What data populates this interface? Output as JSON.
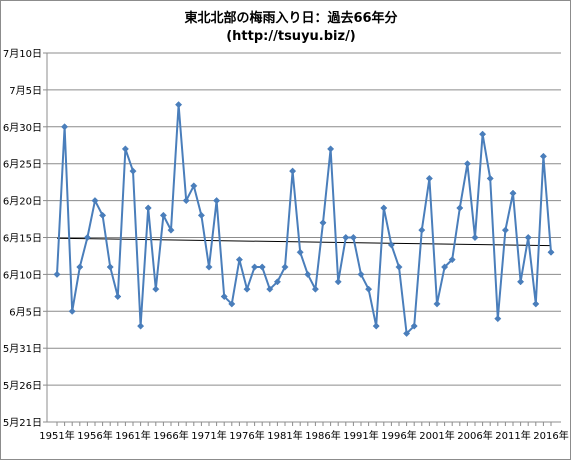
{
  "chart_data": {
    "type": "line",
    "title": "東北北部の梅雨入り日：過去66年分",
    "subtitle": "(http://tsuyu.biz/)",
    "xlabel": "",
    "ylabel": "",
    "x_tick_labels": [
      "1951年",
      "1956年",
      "1961年",
      "1966年",
      "1971年",
      "1976年",
      "1981年",
      "1986年",
      "1991年",
      "1996年",
      "2001年",
      "2006年",
      "2011年",
      "2016年"
    ],
    "y_tick_labels": [
      "5月21日",
      "5月26日",
      "5月31日",
      "6月5日",
      "6月10日",
      "6月15日",
      "6月20日",
      "6月25日",
      "6月30日",
      "7月5日",
      "7月10日"
    ],
    "y_tick_day_values": [
      -10,
      -5,
      0,
      5,
      10,
      15,
      20,
      25,
      30,
      35,
      40
    ],
    "y_unit_note": "days after May 31",
    "ylim": [
      -10,
      40
    ],
    "x": [
      1951,
      1952,
      1953,
      1954,
      1955,
      1956,
      1957,
      1958,
      1959,
      1960,
      1961,
      1962,
      1963,
      1964,
      1965,
      1966,
      1967,
      1968,
      1969,
      1970,
      1971,
      1972,
      1973,
      1974,
      1975,
      1976,
      1977,
      1978,
      1979,
      1980,
      1981,
      1982,
      1983,
      1984,
      1985,
      1986,
      1987,
      1988,
      1989,
      1990,
      1991,
      1992,
      1993,
      1994,
      1995,
      1996,
      1997,
      1998,
      1999,
      2000,
      2001,
      2002,
      2003,
      2004,
      2005,
      2006,
      2007,
      2008,
      2009,
      2010,
      2011,
      2012,
      2013,
      2014,
      2015,
      2016
    ],
    "series": [
      {
        "values": [
          10,
          30,
          5,
          11,
          15,
          20,
          18,
          11,
          7,
          27,
          24,
          3,
          19,
          8,
          18,
          16,
          33,
          20,
          22,
          18,
          11,
          20,
          7,
          6,
          12,
          8,
          11,
          11,
          8,
          9,
          11,
          24,
          13,
          10,
          8,
          17,
          27,
          9,
          15,
          15,
          10,
          8,
          3,
          19,
          14,
          11,
          2,
          3,
          16,
          23,
          6,
          11,
          12,
          19,
          25,
          15,
          29,
          23,
          4,
          16,
          21,
          9,
          15,
          6,
          26,
          13
        ],
        "color": "#4a7ebb",
        "marker": "diamond"
      },
      {
        "type": "trendline",
        "values_at_ends": [
          14.9,
          13.9
        ],
        "color": "#000000"
      }
    ],
    "grid": true,
    "legend": "none"
  }
}
